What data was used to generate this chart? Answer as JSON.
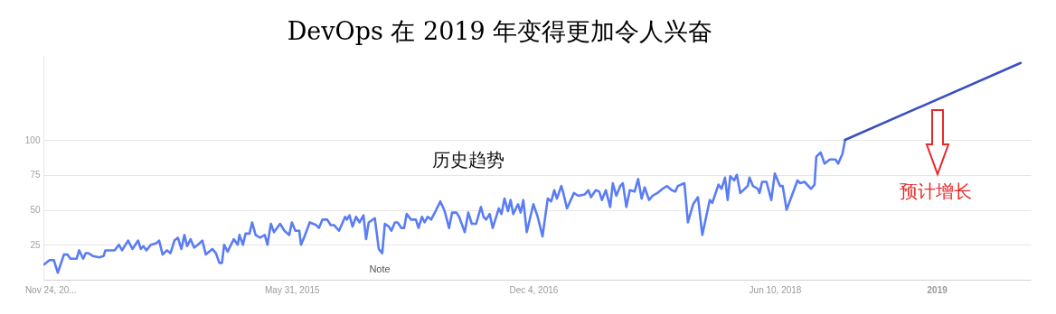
{
  "chart_data": {
    "type": "line",
    "title": "DevOps 在 2019 年变得更加令人兴奋",
    "annotations": [
      "历史趋势",
      "预计增长",
      "Note"
    ],
    "x": [
      "2013-11-10",
      "2013-11-22",
      "2013-12-02",
      "2013-12-11",
      "2013-12-25",
      "2014-01-02",
      "2014-01-09",
      "2014-01-23",
      "2014-01-29",
      "2014-02-07",
      "2014-02-13",
      "2014-02-19",
      "2014-03-01",
      "2014-03-16",
      "2014-03-26",
      "2014-03-30",
      "2014-04-20",
      "2014-04-30",
      "2014-05-07",
      "2014-05-21",
      "2014-05-31",
      "2014-06-13",
      "2014-06-19",
      "2014-06-25",
      "2014-07-02",
      "2014-07-12",
      "2014-07-24",
      "2014-07-31",
      "2014-08-08",
      "2014-08-18",
      "2014-08-26",
      "2014-09-04",
      "2014-09-12",
      "2014-09-20",
      "2014-09-27",
      "2014-10-03",
      "2014-10-11",
      "2014-10-19",
      "2014-10-28",
      "2014-11-07",
      "2014-11-15",
      "2014-11-30",
      "2014-12-08",
      "2014-12-16",
      "2014-12-22",
      "2014-12-27",
      "2015-01-04",
      "2015-01-10",
      "2015-01-18",
      "2015-01-27",
      "2015-01-31",
      "2015-02-08",
      "2015-02-14",
      "2015-02-23",
      "2015-03-01",
      "2015-03-09",
      "2015-03-19",
      "2015-03-30",
      "2015-04-05",
      "2015-04-13",
      "2015-04-20",
      "2015-05-04",
      "2015-05-14",
      "2015-05-25",
      "2015-05-31",
      "2015-06-08",
      "2015-06-17",
      "2015-06-21",
      "2015-06-29",
      "2015-07-11",
      "2015-07-26",
      "2015-08-01",
      "2015-08-09",
      "2015-08-20",
      "2015-08-28",
      "2015-09-05",
      "2015-09-16",
      "2015-09-30",
      "2015-10-04",
      "2015-10-10",
      "2015-10-17",
      "2015-10-25",
      "2015-11-02",
      "2015-11-11",
      "2015-11-17",
      "2015-11-23",
      "2015-12-07",
      "2015-12-16",
      "2015-12-24",
      "2015-12-30",
      "2016-01-08",
      "2016-01-14",
      "2016-01-22",
      "2016-01-28",
      "2016-02-06",
      "2016-02-12",
      "2016-02-18",
      "2016-02-28",
      "2016-03-10",
      "2016-03-16",
      "2016-03-24",
      "2016-03-30",
      "2016-04-06",
      "2016-04-14",
      "2016-04-24",
      "2016-05-05",
      "2016-05-15",
      "2016-05-25",
      "2016-06-01",
      "2016-06-11",
      "2016-06-17",
      "2016-06-30",
      "2016-07-08",
      "2016-07-16",
      "2016-07-26",
      "2016-08-06",
      "2016-08-12",
      "2016-08-18",
      "2016-08-26",
      "2016-09-02",
      "2016-09-16",
      "2016-09-22",
      "2016-09-29",
      "2016-10-07",
      "2016-10-13",
      "2016-10-19",
      "2016-10-30",
      "2016-11-05",
      "2016-11-11",
      "2016-11-19",
      "2016-12-04",
      "2016-12-14",
      "2016-12-25",
      "2017-01-06",
      "2017-01-14",
      "2017-01-21",
      "2017-01-27",
      "2017-02-06",
      "2017-02-10",
      "2017-02-19",
      "2017-03-07",
      "2017-03-17",
      "2017-04-01",
      "2017-04-09",
      "2017-04-15",
      "2017-04-26",
      "2017-05-04",
      "2017-05-10",
      "2017-05-19",
      "2017-05-29",
      "2017-06-04",
      "2017-06-12",
      "2017-06-21",
      "2017-06-27",
      "2017-07-05",
      "2017-07-13",
      "2017-07-24",
      "2017-08-01",
      "2017-08-09",
      "2017-08-16",
      "2017-08-26",
      "2017-09-03",
      "2017-09-14",
      "2017-09-26",
      "2017-10-06",
      "2017-10-17",
      "2017-10-25",
      "2017-10-31",
      "2017-11-15",
      "2017-11-23",
      "2017-12-05",
      "2017-12-16",
      "2017-12-26",
      "2018-01-12",
      "2018-01-18",
      "2018-02-01",
      "2018-02-08",
      "2018-02-16",
      "2018-02-22",
      "2018-02-28",
      "2018-03-09",
      "2018-03-15",
      "2018-03-23",
      "2018-04-09",
      "2018-04-13",
      "2018-04-21",
      "2018-05-02",
      "2018-05-06",
      "2018-05-12",
      "2018-05-22",
      "2018-06-02",
      "2018-06-10",
      "2018-06-22",
      "2018-06-28",
      "2018-07-07",
      "2018-08-01",
      "2018-08-07",
      "2018-08-17",
      "2018-09-01",
      "2018-09-09",
      "2018-09-13",
      "2018-09-23",
      "2018-10-02",
      "2018-10-14",
      "2018-10-27",
      "2018-11-02",
      "2018-11-12",
      "2018-11-18"
    ],
    "series": [
      {
        "color": "#5a7cf5",
        "values": [
          11,
          14,
          14,
          5,
          18,
          18,
          15,
          15,
          21,
          15,
          19,
          19,
          17,
          16,
          17,
          21,
          21,
          25,
          21,
          28,
          22,
          28,
          22,
          24,
          21,
          25,
          26,
          28,
          18,
          21,
          19,
          28,
          30,
          22,
          32,
          24,
          29,
          23,
          25,
          28,
          18,
          22,
          19,
          12,
          12,
          25,
          20,
          24,
          29,
          25,
          32,
          25,
          33,
          33,
          41,
          32,
          30,
          32,
          25,
          40,
          34,
          40,
          35,
          32,
          41,
          35,
          35,
          25,
          31,
          41,
          39,
          37,
          43,
          43,
          39,
          39,
          35,
          45,
          43,
          46,
          38,
          45,
          41,
          46,
          29,
          41,
          44,
          22,
          19,
          40,
          38,
          35,
          41,
          41,
          37,
          37,
          47,
          43,
          43,
          37,
          45,
          41,
          45,
          43,
          49,
          56,
          49,
          37,
          48,
          48,
          45,
          34,
          48,
          40,
          40,
          52,
          45,
          43,
          47,
          37,
          51,
          47,
          58,
          49,
          57,
          47,
          54,
          48,
          57,
          34,
          54,
          45,
          31,
          58,
          56,
          64,
          58,
          67,
          63,
          51,
          62,
          60,
          61,
          64,
          59,
          64,
          63,
          57,
          64,
          52,
          69,
          60,
          67,
          69,
          52,
          64,
          63,
          72,
          58,
          66,
          57,
          60,
          62,
          65,
          67,
          64,
          63,
          67,
          69,
          41,
          54,
          59,
          32,
          57,
          55,
          68,
          65,
          73,
          57,
          74,
          71,
          75,
          62,
          67,
          73,
          67,
          65,
          62,
          70,
          70,
          57,
          76,
          67,
          67,
          50,
          71,
          69,
          70,
          65,
          68,
          88,
          91,
          83,
          86,
          86,
          83,
          90,
          100
        ]
      },
      {
        "color": "#3a4fc2",
        "x": [
          "2018-11-18",
          "2019-12-25"
        ],
        "values": [
          100,
          155
        ]
      }
    ],
    "xlim": [
      "2013-11-08",
      "2020-01-17"
    ],
    "xticks": [
      {
        "value": "2013-11-24",
        "label": "Nov 24, 20..."
      },
      {
        "value": "2015-05-31",
        "label": "May 31, 2015"
      },
      {
        "value": "2016-12-04",
        "label": "Dec 4, 2016"
      },
      {
        "value": "2018-06-10",
        "label": "Jun 10, 2018"
      },
      {
        "value": "2019-06-16",
        "label": "2019"
      }
    ],
    "ylim": [
      0,
      160
    ],
    "yticks": [
      25,
      50,
      75,
      100
    ],
    "grid": "y"
  }
}
